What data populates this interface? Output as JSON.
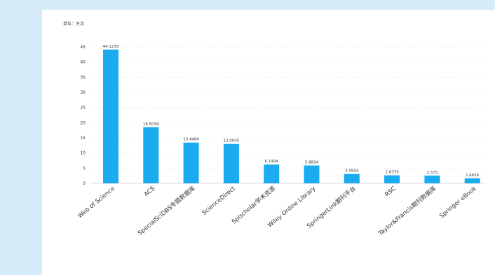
{
  "chart_data": {
    "type": "bar",
    "unit_label": "单位：万次",
    "categories": [
      "Web of Science",
      "ACS",
      "SpecialSciDBS专题数据库",
      "ScienceDirect",
      "Spischolar学术资源",
      "Wiley Online Library",
      "SpringerLink期刊平台",
      "RSC",
      "Taylor&Francis期刊数据库",
      "Springer eBook"
    ],
    "values": [
      44.1235,
      18.5039,
      13.4484,
      13.0005,
      6.1994,
      5.8894,
      3.0934,
      2.6379,
      2.573,
      1.6656
    ],
    "value_labels": [
      "44.1235",
      "18.5039",
      "13.4484",
      "13.0005",
      "6.1994",
      "5.8894",
      "3.0934",
      "2.6379",
      "2.573",
      "1.6656"
    ],
    "y_ticks": [
      "0",
      "5",
      "10",
      "15",
      "20",
      "25",
      "30",
      "35",
      "40",
      "45"
    ],
    "ylim": [
      0,
      45
    ],
    "grid": true,
    "bar_color": "#1aabf0"
  }
}
